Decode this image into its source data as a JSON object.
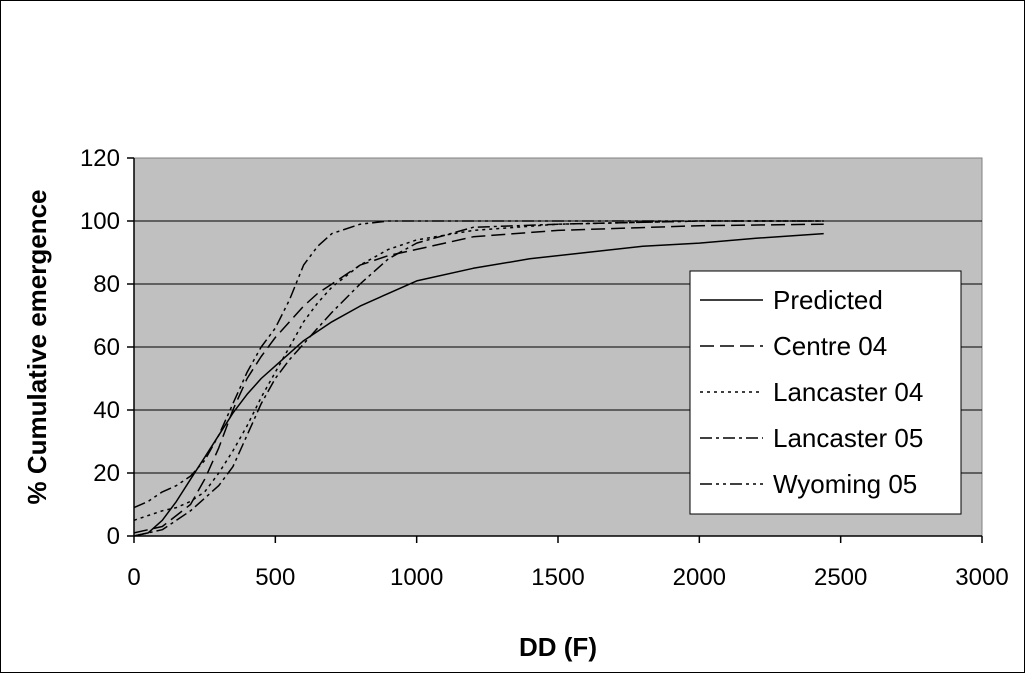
{
  "chart_data": {
    "type": "line",
    "xlabel": "DD (F)",
    "ylabel": "% Cumulative emergence",
    "xlim": [
      0,
      3000
    ],
    "ylim": [
      0,
      120
    ],
    "xticks": [
      "0",
      "500",
      "1000",
      "1500",
      "2000",
      "2500",
      "3000"
    ],
    "yticks": [
      "0",
      "20",
      "40",
      "60",
      "80",
      "100",
      "120"
    ],
    "grid": "horizontal",
    "plot_background": "#c0c0c0",
    "legend_position": "right-middle",
    "series": [
      {
        "name": "Predicted",
        "dash": "solid",
        "points": [
          [
            0,
            0
          ],
          [
            50,
            1
          ],
          [
            100,
            5
          ],
          [
            150,
            11
          ],
          [
            200,
            18
          ],
          [
            250,
            25
          ],
          [
            300,
            32
          ],
          [
            350,
            39
          ],
          [
            400,
            45
          ],
          [
            450,
            50
          ],
          [
            500,
            54
          ],
          [
            600,
            62
          ],
          [
            700,
            68
          ],
          [
            800,
            73
          ],
          [
            900,
            77
          ],
          [
            1000,
            81
          ],
          [
            1200,
            85
          ],
          [
            1400,
            88
          ],
          [
            1600,
            90
          ],
          [
            1800,
            92
          ],
          [
            2000,
            93
          ],
          [
            2200,
            94.5
          ],
          [
            2440,
            96
          ]
        ]
      },
      {
        "name": "Centre 04",
        "dash": "long-dash",
        "points": [
          [
            0,
            1
          ],
          [
            100,
            3
          ],
          [
            200,
            10
          ],
          [
            250,
            18
          ],
          [
            300,
            28
          ],
          [
            350,
            40
          ],
          [
            400,
            50
          ],
          [
            450,
            57
          ],
          [
            500,
            63
          ],
          [
            550,
            68
          ],
          [
            600,
            73
          ],
          [
            650,
            77
          ],
          [
            700,
            80
          ],
          [
            800,
            86
          ],
          [
            900,
            89
          ],
          [
            1000,
            91
          ],
          [
            1200,
            95
          ],
          [
            1500,
            97
          ],
          [
            2000,
            98.5
          ],
          [
            2440,
            99
          ]
        ]
      },
      {
        "name": "Lancaster 04",
        "dash": "dotted",
        "points": [
          [
            0,
            5
          ],
          [
            100,
            8
          ],
          [
            150,
            9
          ],
          [
            200,
            11
          ],
          [
            250,
            14
          ],
          [
            300,
            20
          ],
          [
            350,
            27
          ],
          [
            400,
            35
          ],
          [
            450,
            44
          ],
          [
            500,
            52
          ],
          [
            550,
            60
          ],
          [
            600,
            68
          ],
          [
            650,
            74
          ],
          [
            700,
            79
          ],
          [
            800,
            86
          ],
          [
            900,
            91
          ],
          [
            1000,
            94
          ],
          [
            1200,
            97
          ],
          [
            1500,
            99
          ],
          [
            2000,
            100
          ],
          [
            2440,
            100
          ]
        ]
      },
      {
        "name": "Lancaster 05",
        "dash": "dash-dot",
        "points": [
          [
            0,
            0
          ],
          [
            50,
            1
          ],
          [
            100,
            2
          ],
          [
            150,
            5
          ],
          [
            200,
            8
          ],
          [
            250,
            12
          ],
          [
            300,
            16
          ],
          [
            350,
            22
          ],
          [
            400,
            32
          ],
          [
            450,
            42
          ],
          [
            500,
            50
          ],
          [
            550,
            56
          ],
          [
            600,
            61
          ],
          [
            650,
            66
          ],
          [
            700,
            71
          ],
          [
            800,
            80
          ],
          [
            900,
            88
          ],
          [
            1000,
            93
          ],
          [
            1200,
            98
          ],
          [
            1500,
            99
          ],
          [
            2000,
            100
          ],
          [
            2440,
            100
          ]
        ]
      },
      {
        "name": "Wyoming 05",
        "dash": "dash-dot-dot",
        "points": [
          [
            0,
            9
          ],
          [
            50,
            11
          ],
          [
            100,
            14
          ],
          [
            150,
            16
          ],
          [
            200,
            19
          ],
          [
            250,
            24
          ],
          [
            300,
            32
          ],
          [
            350,
            42
          ],
          [
            400,
            52
          ],
          [
            450,
            60
          ],
          [
            500,
            66
          ],
          [
            550,
            75
          ],
          [
            600,
            86
          ],
          [
            650,
            92
          ],
          [
            700,
            96
          ],
          [
            800,
            99
          ],
          [
            900,
            100
          ],
          [
            1000,
            100
          ],
          [
            1500,
            100
          ],
          [
            2000,
            100
          ],
          [
            2440,
            100
          ]
        ]
      }
    ]
  }
}
